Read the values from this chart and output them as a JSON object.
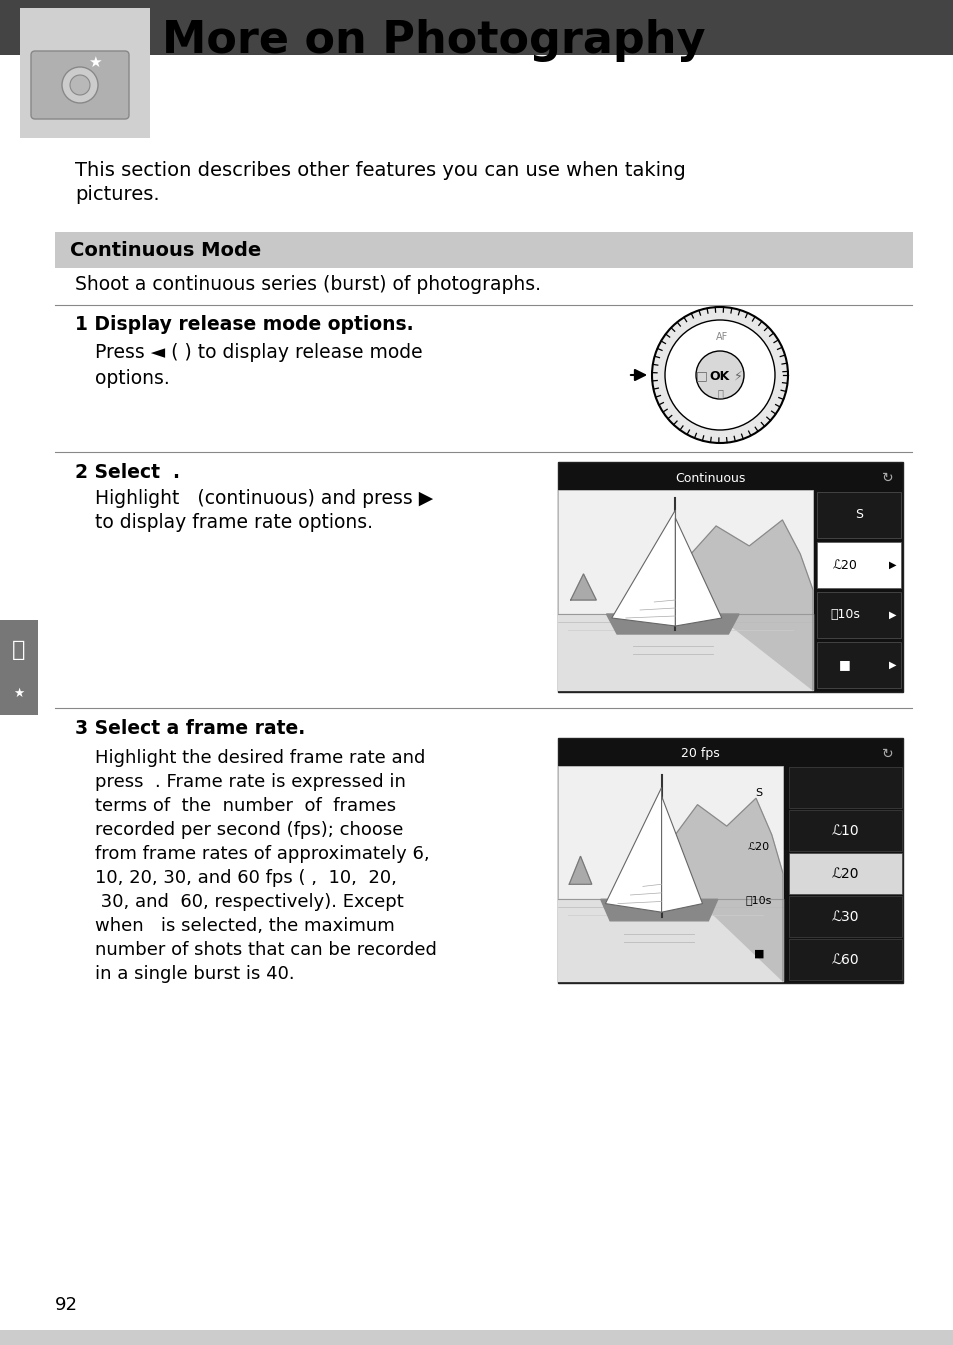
{
  "title": "More on Photography",
  "subtitle_line1": "This section describes other features you can use when taking",
  "subtitle_line2": "pictures.",
  "section_title": "Continuous Mode",
  "section_desc": "Shoot a continuous series (burst) of photographs.",
  "step1_title": "1 Display release mode options.",
  "step1_line1": "Press ◄ ( ) to display release mode",
  "step1_line2": "options.",
  "step2_title": "2 Select  .",
  "step2_line1": "Highlight   (continuous) and press ▶",
  "step2_line2": "to display frame rate options.",
  "step3_title": "3 Select a frame rate.",
  "step3_lines": [
    "Highlight the desired frame rate and",
    "press  . Frame rate is expressed in",
    "terms of  the  number  of  frames",
    "recorded per second (fps); choose",
    "from frame rates of approximately 6,",
    "10, 20, 30, and 60 fps ( ,  10,  20,",
    " 30, and  60, respectively). Except",
    "when   is selected, the maximum",
    "number of shots that can be recorded",
    "in a single burst is 40."
  ],
  "page_number": "92",
  "bg_color": "#ffffff",
  "header_bg": "#444444",
  "icon_bg": "#d0d0d0",
  "section_bg": "#c8c8c8"
}
